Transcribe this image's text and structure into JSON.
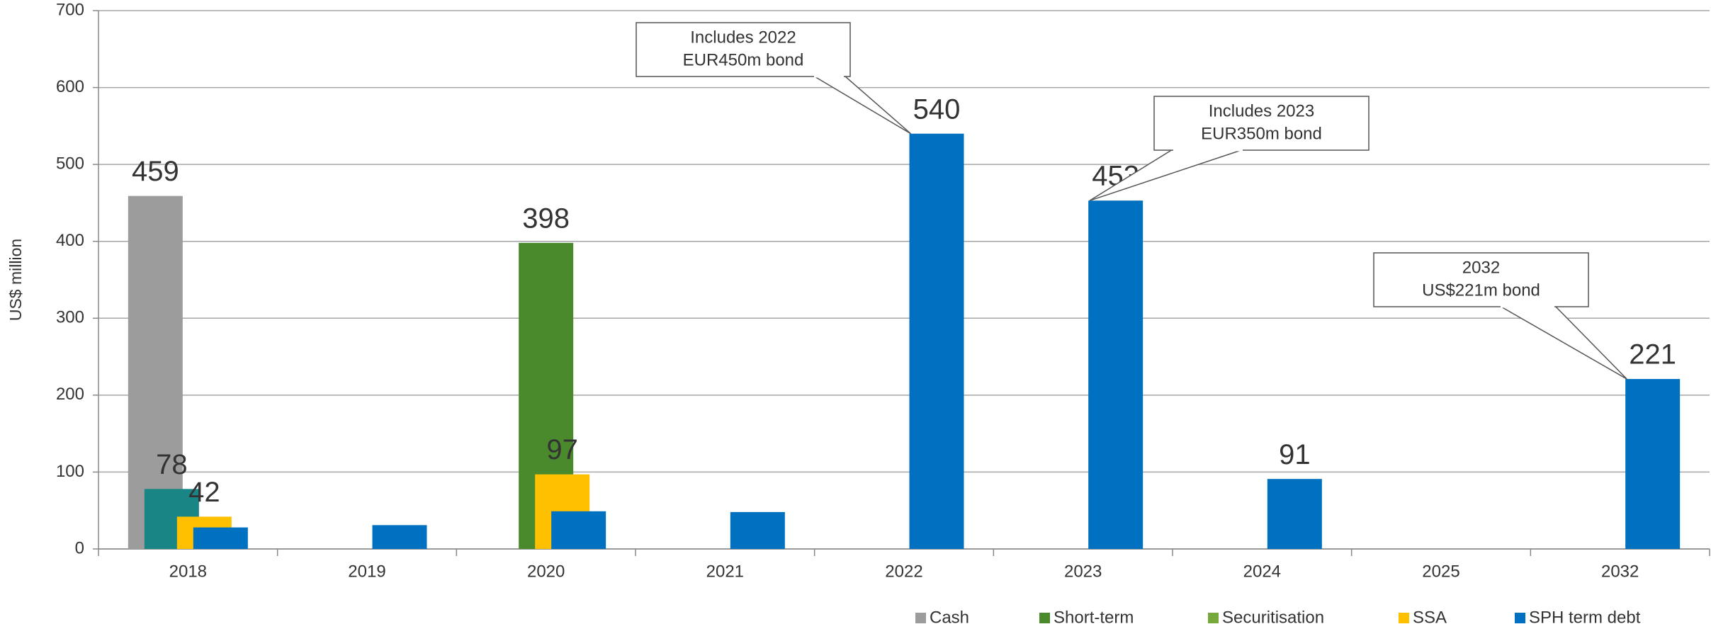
{
  "chart_data": {
    "type": "bar",
    "y_label": "US$ million",
    "categories": [
      "2018",
      "2019",
      "2020",
      "2021",
      "2022",
      "2023",
      "2024",
      "2025",
      "2032"
    ],
    "series": [
      {
        "name": "Cash",
        "color": "#9c9c9c",
        "values": [
          459,
          null,
          null,
          null,
          null,
          null,
          null,
          null,
          null
        ],
        "value_labels": [
          "459",
          null,
          null,
          null,
          null,
          null,
          null,
          null,
          null
        ]
      },
      {
        "name": "Short-term",
        "color": "#4a8a2c",
        "point_colors": [
          "#1a8585",
          null,
          null,
          null,
          null,
          null,
          null,
          null,
          null
        ],
        "values": [
          78,
          null,
          null,
          null,
          null,
          null,
          null,
          null,
          null
        ],
        "value_labels": [
          "78",
          null,
          null,
          null,
          null,
          null,
          null,
          null,
          null
        ]
      },
      {
        "name": "Securitisation",
        "color": "#77a83a",
        "point_colors": [
          null,
          null,
          "#4a8a2c",
          null,
          null,
          null,
          null,
          null,
          null
        ],
        "values": [
          null,
          null,
          398,
          null,
          null,
          null,
          null,
          null,
          null
        ],
        "value_labels": [
          null,
          null,
          "398",
          null,
          null,
          null,
          null,
          null,
          null
        ]
      },
      {
        "name": "SSA",
        "color": "#ffc000",
        "values": [
          42,
          null,
          97,
          null,
          null,
          null,
          null,
          null,
          null
        ],
        "value_labels": [
          "42",
          null,
          "97",
          null,
          null,
          null,
          null,
          null,
          null
        ]
      },
      {
        "name": "SPH term debt",
        "color": "#0070c0",
        "values": [
          28,
          31,
          49,
          48,
          540,
          453,
          91,
          null,
          221
        ],
        "value_labels": [
          null,
          null,
          null,
          null,
          "540",
          "453",
          "91",
          null,
          "221"
        ]
      }
    ],
    "ylim": [
      0,
      700
    ],
    "yticks": [
      0,
      100,
      200,
      300,
      400,
      500,
      600,
      700
    ],
    "grid": true,
    "legend": "bottom-right",
    "annotations": [
      {
        "lines": [
          "Includes 2022",
          "EUR450m bond"
        ],
        "category": 4,
        "series": 4
      },
      {
        "lines": [
          "Includes 2023",
          "EUR350m bond"
        ],
        "category": 5,
        "series": 4
      },
      {
        "lines": [
          "2032",
          "US$221m bond"
        ],
        "category": 8,
        "series": 4
      }
    ]
  }
}
